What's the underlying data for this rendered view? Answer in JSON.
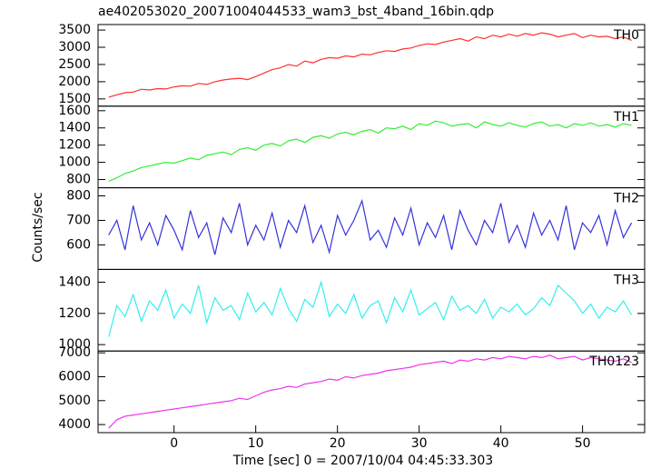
{
  "figure": {
    "title": "ae402053020_20071004044533_wam3_bst_4band_16bin.qdp",
    "y_label": "Counts/sec",
    "x_label": "Time [sec] 0 = 2007/10/04 04:45:33.303"
  },
  "chart_data": [
    {
      "type": "line",
      "x": [
        -8,
        -7,
        -6,
        -5,
        -4,
        -3,
        -2,
        -1,
        0,
        1,
        2,
        3,
        4,
        5,
        6,
        7,
        8,
        9,
        10,
        11,
        12,
        13,
        14,
        15,
        16,
        17,
        18,
        19,
        20,
        21,
        22,
        23,
        24,
        25,
        26,
        27,
        28,
        29,
        30,
        31,
        32,
        33,
        34,
        35,
        36,
        37,
        38,
        39,
        40,
        41,
        42,
        43,
        44,
        45,
        46,
        47,
        48,
        49,
        50,
        51,
        52,
        53,
        54,
        55,
        56
      ],
      "series": [
        {
          "name": "TH0",
          "color": "#ff3030",
          "values": [
            1550,
            1620,
            1680,
            1700,
            1780,
            1760,
            1800,
            1790,
            1850,
            1880,
            1870,
            1950,
            1920,
            2000,
            2050,
            2080,
            2100,
            2060,
            2150,
            2250,
            2350,
            2400,
            2500,
            2450,
            2600,
            2550,
            2650,
            2700,
            2680,
            2750,
            2720,
            2800,
            2780,
            2850,
            2900,
            2880,
            2950,
            2980,
            3050,
            3100,
            3080,
            3150,
            3200,
            3250,
            3180,
            3300,
            3250,
            3350,
            3300,
            3380,
            3320,
            3400,
            3350,
            3420,
            3380,
            3300,
            3350,
            3400,
            3280,
            3350,
            3300,
            3320,
            3250,
            3300,
            3200
          ]
        }
      ],
      "xlim": [
        -9.3,
        57.6
      ],
      "ylim": [
        1290,
        3660
      ],
      "yticks": [
        1500,
        2000,
        2500,
        3000,
        3500
      ]
    },
    {
      "type": "line",
      "x": [
        -8,
        -7,
        -6,
        -5,
        -4,
        -3,
        -2,
        -1,
        0,
        1,
        2,
        3,
        4,
        5,
        6,
        7,
        8,
        9,
        10,
        11,
        12,
        13,
        14,
        15,
        16,
        17,
        18,
        19,
        20,
        21,
        22,
        23,
        24,
        25,
        26,
        27,
        28,
        29,
        30,
        31,
        32,
        33,
        34,
        35,
        36,
        37,
        38,
        39,
        40,
        41,
        42,
        43,
        44,
        45,
        46,
        47,
        48,
        49,
        50,
        51,
        52,
        53,
        54,
        55,
        56
      ],
      "series": [
        {
          "name": "TH1",
          "color": "#33ee33",
          "values": [
            780,
            820,
            870,
            900,
            940,
            960,
            980,
            1000,
            990,
            1020,
            1050,
            1030,
            1080,
            1100,
            1120,
            1090,
            1150,
            1170,
            1140,
            1200,
            1220,
            1190,
            1250,
            1270,
            1230,
            1290,
            1310,
            1280,
            1330,
            1350,
            1320,
            1360,
            1380,
            1340,
            1400,
            1390,
            1420,
            1380,
            1450,
            1430,
            1480,
            1460,
            1420,
            1440,
            1450,
            1400,
            1470,
            1440,
            1420,
            1460,
            1430,
            1410,
            1450,
            1470,
            1420,
            1440,
            1400,
            1450,
            1430,
            1460,
            1420,
            1440,
            1410,
            1450,
            1430
          ]
        }
      ],
      "xlim": [
        -9.3,
        57.6
      ],
      "ylim": [
        704,
        1653
      ],
      "yticks": [
        800,
        1000,
        1200,
        1400,
        1600
      ]
    },
    {
      "type": "line",
      "x": [
        -8,
        -7,
        -6,
        -5,
        -4,
        -3,
        -2,
        -1,
        0,
        1,
        2,
        3,
        4,
        5,
        6,
        7,
        8,
        9,
        10,
        11,
        12,
        13,
        14,
        15,
        16,
        17,
        18,
        19,
        20,
        21,
        22,
        23,
        24,
        25,
        26,
        27,
        28,
        29,
        30,
        31,
        32,
        33,
        34,
        35,
        36,
        37,
        38,
        39,
        40,
        41,
        42,
        43,
        44,
        45,
        46,
        47,
        48,
        49,
        50,
        51,
        52,
        53,
        54,
        55,
        56
      ],
      "series": [
        {
          "name": "TH2",
          "color": "#3333dd",
          "values": [
            640,
            700,
            580,
            760,
            620,
            690,
            600,
            720,
            660,
            580,
            740,
            630,
            690,
            560,
            710,
            650,
            770,
            600,
            680,
            620,
            730,
            590,
            700,
            650,
            760,
            610,
            680,
            570,
            720,
            640,
            700,
            780,
            620,
            660,
            590,
            710,
            640,
            750,
            600,
            690,
            630,
            720,
            580,
            740,
            660,
            600,
            700,
            650,
            770,
            610,
            680,
            590,
            730,
            640,
            700,
            620,
            760,
            580,
            690,
            650,
            720,
            600,
            740,
            630,
            690
          ]
        }
      ],
      "xlim": [
        -9.3,
        57.6
      ],
      "ylim": [
        500,
        833
      ],
      "yticks": [
        600,
        700,
        800
      ]
    },
    {
      "type": "line",
      "x": [
        -8,
        -7,
        -6,
        -5,
        -4,
        -3,
        -2,
        -1,
        0,
        1,
        2,
        3,
        4,
        5,
        6,
        7,
        8,
        9,
        10,
        11,
        12,
        13,
        14,
        15,
        16,
        17,
        18,
        19,
        20,
        21,
        22,
        23,
        24,
        25,
        26,
        27,
        28,
        29,
        30,
        31,
        32,
        33,
        34,
        35,
        36,
        37,
        38,
        39,
        40,
        41,
        42,
        43,
        44,
        45,
        46,
        47,
        48,
        49,
        50,
        51,
        52,
        53,
        54,
        55,
        56
      ],
      "series": [
        {
          "name": "TH3",
          "color": "#33eeee",
          "values": [
            1050,
            1250,
            1180,
            1320,
            1150,
            1280,
            1220,
            1350,
            1170,
            1260,
            1200,
            1380,
            1140,
            1300,
            1220,
            1250,
            1160,
            1330,
            1210,
            1270,
            1190,
            1360,
            1230,
            1150,
            1290,
            1240,
            1400,
            1180,
            1260,
            1200,
            1320,
            1170,
            1250,
            1280,
            1140,
            1300,
            1210,
            1350,
            1190,
            1230,
            1270,
            1160,
            1310,
            1220,
            1250,
            1200,
            1290,
            1170,
            1240,
            1210,
            1260,
            1190,
            1230,
            1300,
            1250,
            1380,
            1330,
            1280,
            1200,
            1260,
            1170,
            1240,
            1210,
            1280,
            1190
          ]
        }
      ],
      "xlim": [
        -9.3,
        57.6
      ],
      "ylim": [
        959,
        1482
      ],
      "yticks": [
        1000,
        1200,
        1400
      ]
    },
    {
      "type": "line",
      "x": [
        -8,
        -7,
        -6,
        -5,
        -4,
        -3,
        -2,
        -1,
        0,
        1,
        2,
        3,
        4,
        5,
        6,
        7,
        8,
        9,
        10,
        11,
        12,
        13,
        14,
        15,
        16,
        17,
        18,
        19,
        20,
        21,
        22,
        23,
        24,
        25,
        26,
        27,
        28,
        29,
        30,
        31,
        32,
        33,
        34,
        35,
        36,
        37,
        38,
        39,
        40,
        41,
        42,
        43,
        44,
        45,
        46,
        47,
        48,
        49,
        50,
        51,
        52,
        53,
        54,
        55,
        56
      ],
      "series": [
        {
          "name": "TH0123",
          "color": "#ee33ee",
          "values": [
            3850,
            4200,
            4350,
            4400,
            4450,
            4500,
            4550,
            4600,
            4650,
            4700,
            4750,
            4800,
            4850,
            4900,
            4950,
            5000,
            5100,
            5050,
            5200,
            5350,
            5450,
            5500,
            5600,
            5550,
            5700,
            5750,
            5800,
            5900,
            5850,
            6000,
            5950,
            6050,
            6100,
            6150,
            6250,
            6300,
            6350,
            6400,
            6500,
            6550,
            6600,
            6650,
            6550,
            6700,
            6650,
            6750,
            6700,
            6800,
            6750,
            6850,
            6800,
            6750,
            6850,
            6800,
            6900,
            6750,
            6800,
            6850,
            6700,
            6800,
            6750,
            6700,
            6650,
            6750,
            6600
          ]
        }
      ],
      "xlim": [
        -9.3,
        57.6
      ],
      "xticks": [
        0,
        10,
        20,
        30,
        40,
        50
      ],
      "ylim": [
        3662,
        7075
      ],
      "yticks": [
        4000,
        5000,
        6000,
        7000
      ]
    }
  ]
}
